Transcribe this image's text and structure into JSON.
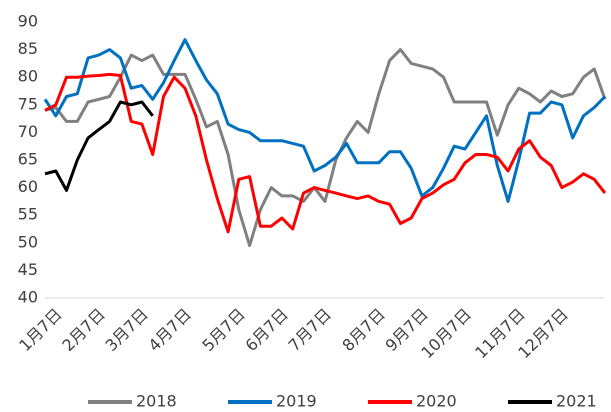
{
  "chart_data": {
    "type": "line",
    "categories": [
      null,
      "1月7日",
      null,
      null,
      null,
      "2月7日",
      null,
      null,
      null,
      "3月7日",
      null,
      null,
      null,
      "4月7日",
      null,
      null,
      null,
      null,
      "5月7日",
      null,
      null,
      null,
      "6月7日",
      null,
      null,
      null,
      "7月7日",
      null,
      null,
      null,
      null,
      "8月7日",
      null,
      null,
      null,
      "9月7日",
      null,
      null,
      null,
      "10月7日",
      null,
      null,
      null,
      null,
      "11月7日",
      null,
      null,
      null,
      "12月7日",
      null,
      null,
      null,
      null
    ],
    "series": [
      {
        "name": "2018",
        "color": "#808080",
        "values": [
          74,
          74.5,
          72,
          72,
          75.5,
          76,
          76.5,
          80,
          84,
          83,
          84,
          80.5,
          80.5,
          80.5,
          76,
          71,
          72,
          66,
          56,
          49.5,
          56,
          60,
          58.5,
          58.5,
          57.5,
          60,
          57.5,
          65,
          69,
          72,
          70,
          77,
          83,
          85,
          82.5,
          82,
          81.5,
          80,
          75.5,
          75.5,
          75.5,
          75.5,
          69.5,
          75,
          78,
          77,
          75.5,
          77.5,
          76.5,
          77,
          80,
          81.5,
          76
        ]
      },
      {
        "name": "2019",
        "color": "#0070c0",
        "values": [
          76,
          73,
          76.5,
          77,
          83.5,
          84,
          85,
          83.5,
          78,
          78.5,
          76,
          79,
          83,
          86.8,
          83,
          79.5,
          77,
          71.5,
          70.5,
          70,
          68.5,
          68.5,
          68.5,
          68,
          67.5,
          63,
          64,
          65.5,
          68,
          64.5,
          64.5,
          64.5,
          66.5,
          66.5,
          63.5,
          58.5,
          60,
          63.5,
          67.5,
          67,
          70,
          73,
          64,
          57.5,
          65,
          73.5,
          73.5,
          75.5,
          75,
          69,
          73,
          74.5,
          76.5
        ]
      },
      {
        "name": "2020",
        "color": "#ff0000",
        "values": [
          74,
          75,
          80,
          80,
          80.2,
          80.3,
          80.5,
          80.3,
          72,
          71.5,
          66,
          76.5,
          80,
          78,
          73,
          65,
          58,
          52,
          61.5,
          62,
          53,
          53,
          54.5,
          52.5,
          59,
          60,
          59.5,
          59,
          58.5,
          58,
          58.5,
          57.5,
          57,
          53.5,
          54.5,
          58,
          59,
          60.5,
          61.5,
          64.5,
          66,
          66,
          65.5,
          63,
          67,
          68.5,
          65.5,
          64,
          60,
          61,
          62.5,
          61.5,
          59
        ]
      },
      {
        "name": "2021",
        "color": "#000000",
        "values": [
          62.5,
          63,
          59.5,
          65,
          69,
          70.5,
          72,
          75.5,
          75,
          75.5,
          73,
          null,
          null,
          null,
          null,
          null,
          null,
          null,
          null,
          null,
          null,
          null,
          null,
          null,
          null,
          null,
          null,
          null,
          null,
          null,
          null,
          null,
          null,
          null,
          null,
          null,
          null,
          null,
          null,
          null,
          null,
          null,
          null,
          null,
          null,
          null,
          null,
          null,
          null,
          null,
          null,
          null,
          null
        ]
      }
    ],
    "ylim": [
      40,
      90
    ],
    "yticks": [
      40,
      45,
      50,
      55,
      60,
      65,
      70,
      75,
      80,
      85,
      90
    ],
    "grid": false
  }
}
